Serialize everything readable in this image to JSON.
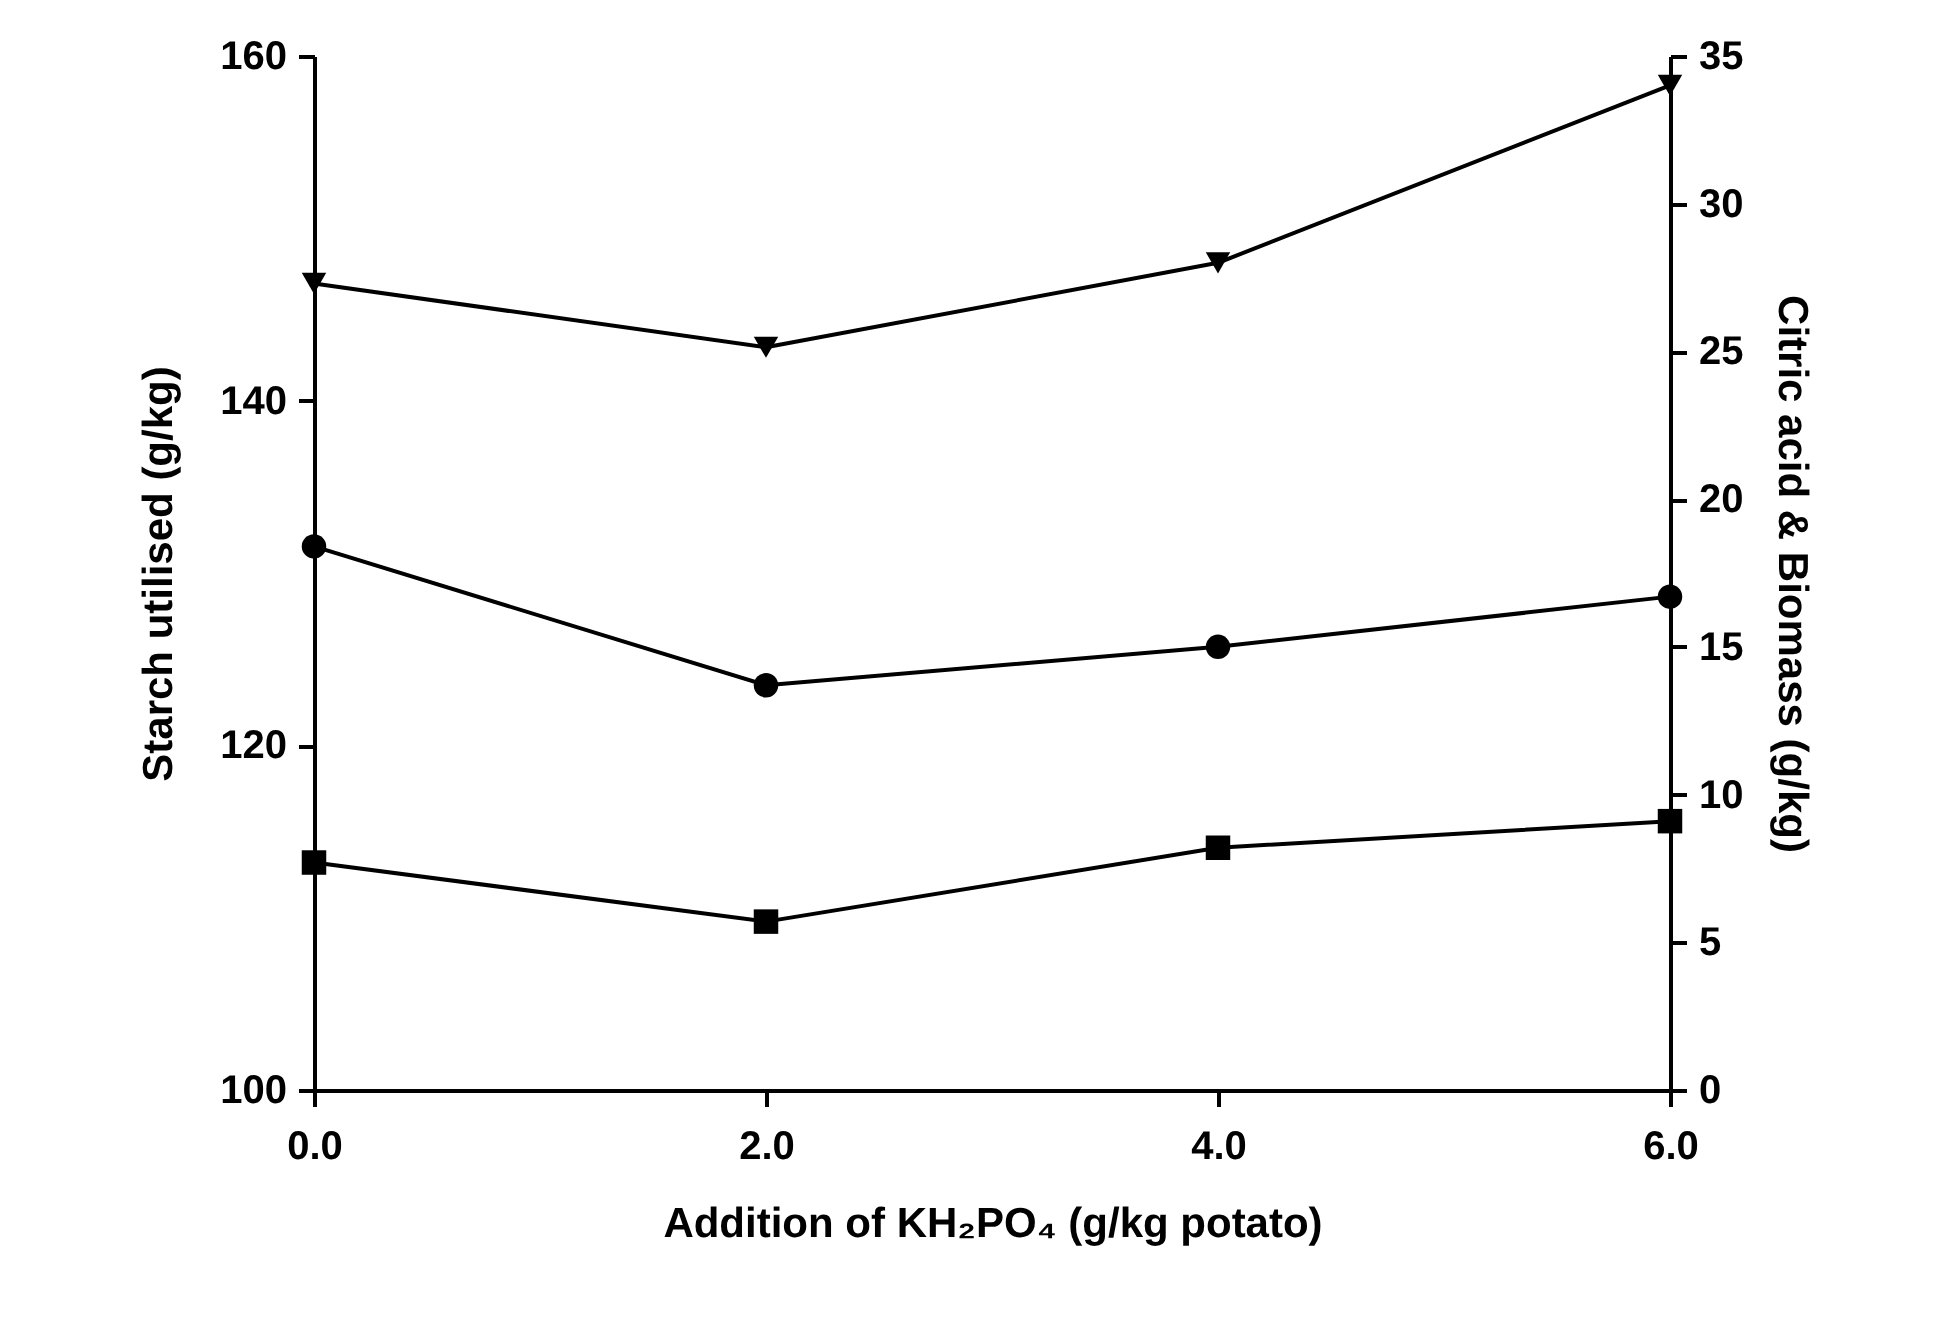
{
  "chart_data": {
    "type": "line",
    "xlabel": "Addition of KH₂PO₄ (g/kg potato)",
    "ylabel": "Starch utilised (g/kg)",
    "y2label": "Citric acid & Biomass (g/kg)",
    "x": [
      0,
      2,
      4,
      6
    ],
    "series": [
      {
        "color": "#000000",
        "marker": "triangle",
        "values": [
          146.8,
          143.1,
          148.0,
          158.3
        ]
      },
      {
        "color": "#000000",
        "marker": "circle",
        "axis": "y2",
        "values": [
          18.4,
          13.7,
          15.0,
          16.7
        ]
      },
      {
        "color": "#000000",
        "marker": "square",
        "axis": "y2",
        "values": [
          7.7,
          5.7,
          8.2,
          9.1
        ]
      }
    ],
    "xlim": [
      0,
      6
    ],
    "xticks": [
      {
        "value": 0,
        "label": "0.0"
      },
      {
        "value": 2,
        "label": "2.0"
      },
      {
        "value": 4,
        "label": "4.0"
      },
      {
        "value": 6,
        "label": "6.0"
      }
    ],
    "ylim": [
      100,
      160
    ],
    "yticks": [
      100,
      120,
      140,
      160
    ],
    "y2lim": [
      0,
      35
    ],
    "y2ticks": [
      0,
      5,
      10,
      15,
      20,
      25,
      30,
      35
    ],
    "grid": false
  }
}
